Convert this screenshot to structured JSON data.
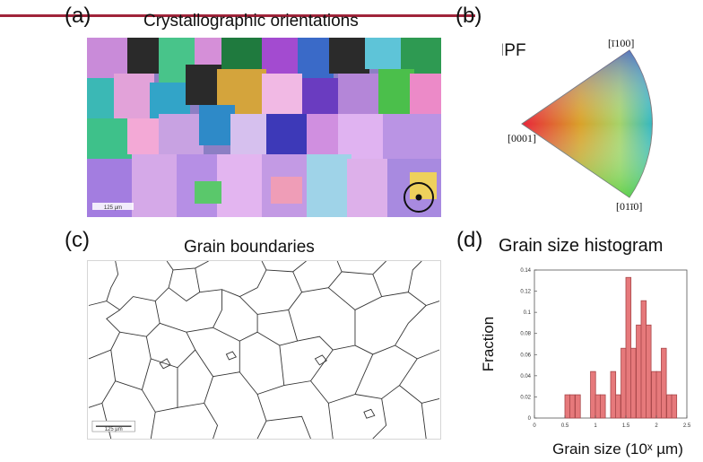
{
  "panels": {
    "a": {
      "label": "(a)",
      "title": "Crystallographic orientations",
      "scalebar_label": "125 µm"
    },
    "b": {
      "label": "(b)",
      "title": "IPF",
      "corner_labels": {
        "top": "[ī100]",
        "left": "[0001]",
        "bottom": "[01ī0]"
      }
    },
    "c": {
      "label": "(c)",
      "title": "Grain boundaries",
      "scalebar_label": "125 µm"
    },
    "d": {
      "label": "(d)",
      "title": "Grain size histogram"
    }
  },
  "colors": {
    "accent_line": "#a0243a",
    "bar_fill": "#e6797b",
    "bar_stroke": "#a8474a"
  },
  "chart_data": {
    "type": "bar",
    "title": "Grain size histogram",
    "xlabel": "Grain size (10ˣ µm)",
    "ylabel": "Fraction",
    "xlim": [
      0,
      2.5
    ],
    "ylim": [
      0,
      0.14
    ],
    "xticks": [
      "0",
      "0.5",
      "1",
      "1.5",
      "2",
      "2.5"
    ],
    "yticks": [
      "0",
      "0.02",
      "0.04",
      "0.06",
      "0.08",
      "0.1",
      "0.12",
      "0.14"
    ],
    "bin_width": 0.0833,
    "bins": [
      {
        "x": 0.5,
        "value": 0.022
      },
      {
        "x": 0.58,
        "value": 0.022
      },
      {
        "x": 0.67,
        "value": 0.022
      },
      {
        "x": 0.92,
        "value": 0.044
      },
      {
        "x": 1.0,
        "value": 0.022
      },
      {
        "x": 1.08,
        "value": 0.022
      },
      {
        "x": 1.25,
        "value": 0.044
      },
      {
        "x": 1.33,
        "value": 0.022
      },
      {
        "x": 1.42,
        "value": 0.066
      },
      {
        "x": 1.5,
        "value": 0.133
      },
      {
        "x": 1.58,
        "value": 0.066
      },
      {
        "x": 1.67,
        "value": 0.088
      },
      {
        "x": 1.75,
        "value": 0.111
      },
      {
        "x": 1.83,
        "value": 0.088
      },
      {
        "x": 1.92,
        "value": 0.044
      },
      {
        "x": 2.0,
        "value": 0.044
      },
      {
        "x": 2.08,
        "value": 0.066
      },
      {
        "x": 2.17,
        "value": 0.022
      },
      {
        "x": 2.25,
        "value": 0.022
      }
    ]
  }
}
